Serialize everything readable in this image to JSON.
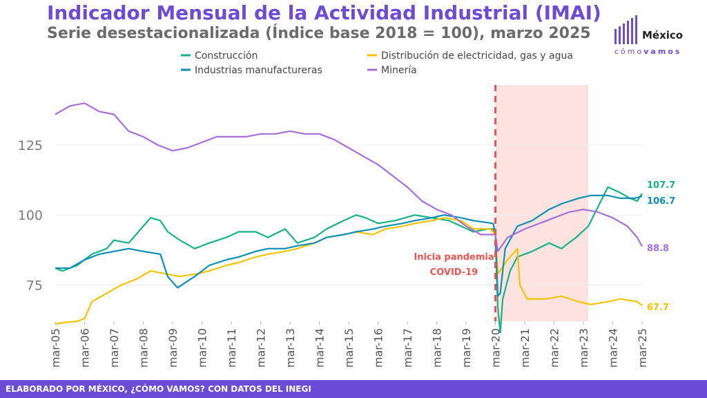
{
  "footer": "ELABORADO POR MÉXICO, ¿CÓMO VAMOS? CON DATOS DEL INEGI",
  "logo": {
    "brand": "México",
    "tagline_a": "cómo",
    "tagline_b": "vamos"
  },
  "chart_data": {
    "type": "line",
    "title": "Indicador Mensual de la Actividad Industrial (IMAI)",
    "subtitle": "Serie desestacionalizada (Índice base 2018 = 100), marzo 2025",
    "xlabel": "",
    "ylabel": "",
    "ylim": [
      62,
      146
    ],
    "yticks": [
      75,
      100,
      125
    ],
    "grid": true,
    "legend_position": "top",
    "x_start": "2005-03",
    "x_end": "2025-03",
    "x_ticks": [
      "mar-05",
      "mar-06",
      "mar-07",
      "mar-08",
      "mar-09",
      "mar-10",
      "mar-11",
      "mar-12",
      "mar-13",
      "mar-14",
      "mar-15",
      "mar-16",
      "mar-17",
      "mar-18",
      "mar-19",
      "mar-20",
      "mar-21",
      "mar-22",
      "mar-23",
      "mar-24",
      "mar-25"
    ],
    "pandemic_line": {
      "date": "2020-03",
      "label_1": "Inicia pandemia",
      "label_2": "COVID-19",
      "color": "#ef5350"
    },
    "shaded_range": {
      "start": "2020-03",
      "end": "2023-05",
      "color": "#fde3df"
    },
    "series": [
      {
        "name": "Construcción",
        "color": "#13b386",
        "end_label": "107.7",
        "points": [
          [
            "2005-03",
            81
          ],
          [
            "2005-06",
            80
          ],
          [
            "2005-12",
            82
          ],
          [
            "2006-06",
            86
          ],
          [
            "2006-12",
            88
          ],
          [
            "2007-03",
            91
          ],
          [
            "2007-09",
            90
          ],
          [
            "2008-03",
            96
          ],
          [
            "2008-06",
            99
          ],
          [
            "2008-10",
            98
          ],
          [
            "2009-01",
            94
          ],
          [
            "2009-06",
            91
          ],
          [
            "2009-12",
            88
          ],
          [
            "2010-06",
            90
          ],
          [
            "2011-01",
            92
          ],
          [
            "2011-06",
            94
          ],
          [
            "2012-01",
            94
          ],
          [
            "2012-06",
            92
          ],
          [
            "2013-01",
            95
          ],
          [
            "2013-06",
            90
          ],
          [
            "2014-01",
            92
          ],
          [
            "2014-06",
            95
          ],
          [
            "2015-01",
            98
          ],
          [
            "2015-06",
            100
          ],
          [
            "2015-10",
            99
          ],
          [
            "2016-03",
            97
          ],
          [
            "2016-10",
            98
          ],
          [
            "2017-06",
            100
          ],
          [
            "2018-01",
            99
          ],
          [
            "2018-08",
            98
          ],
          [
            "2019-01",
            96
          ],
          [
            "2019-06",
            94
          ],
          [
            "2019-12",
            95
          ],
          [
            "2020-02",
            95
          ],
          [
            "2020-03",
            93
          ],
          [
            "2020-04",
            67
          ],
          [
            "2020-05",
            58
          ],
          [
            "2020-06",
            70
          ],
          [
            "2020-09",
            80
          ],
          [
            "2020-12",
            85
          ],
          [
            "2021-06",
            87
          ],
          [
            "2022-01",
            90
          ],
          [
            "2022-06",
            88
          ],
          [
            "2022-12",
            92
          ],
          [
            "2023-05",
            96
          ],
          [
            "2023-09",
            103
          ],
          [
            "2024-01",
            110
          ],
          [
            "2024-06",
            108
          ],
          [
            "2024-10",
            106
          ],
          [
            "2025-01",
            105
          ],
          [
            "2025-03",
            107.7
          ]
        ]
      },
      {
        "name": "Distribución de electricidad, gas y agua",
        "color": "#f5c400",
        "end_label": "67.7",
        "points": [
          [
            "2005-03",
            61
          ],
          [
            "2005-06",
            61.5
          ],
          [
            "2005-12",
            62
          ],
          [
            "2006-03",
            63
          ],
          [
            "2006-06",
            69
          ],
          [
            "2006-12",
            72
          ],
          [
            "2007-06",
            75
          ],
          [
            "2007-12",
            77
          ],
          [
            "2008-06",
            80
          ],
          [
            "2008-12",
            79
          ],
          [
            "2009-06",
            78
          ],
          [
            "2010-01",
            79
          ],
          [
            "2010-06",
            80
          ],
          [
            "2011-01",
            82
          ],
          [
            "2011-06",
            83
          ],
          [
            "2012-01",
            85
          ],
          [
            "2012-06",
            86
          ],
          [
            "2013-01",
            87
          ],
          [
            "2013-06",
            88
          ],
          [
            "2014-01",
            90
          ],
          [
            "2014-06",
            92
          ],
          [
            "2015-01",
            93
          ],
          [
            "2015-06",
            94
          ],
          [
            "2016-01",
            93
          ],
          [
            "2016-06",
            95
          ],
          [
            "2017-01",
            96
          ],
          [
            "2017-06",
            97
          ],
          [
            "2018-01",
            98
          ],
          [
            "2018-06",
            99
          ],
          [
            "2019-01",
            98
          ],
          [
            "2019-06",
            95
          ],
          [
            "2020-01",
            95
          ],
          [
            "2020-03",
            93
          ],
          [
            "2020-04",
            79
          ],
          [
            "2020-08",
            84
          ],
          [
            "2020-12",
            88
          ],
          [
            "2021-01",
            75
          ],
          [
            "2021-04",
            70
          ],
          [
            "2021-12",
            70
          ],
          [
            "2022-06",
            71
          ],
          [
            "2023-01",
            69
          ],
          [
            "2023-06",
            68
          ],
          [
            "2024-01",
            69
          ],
          [
            "2024-06",
            70
          ],
          [
            "2025-01",
            69
          ],
          [
            "2025-03",
            67.7
          ]
        ]
      },
      {
        "name": "Industrias manufactureras",
        "color": "#0a8fb5",
        "end_label": "106.7",
        "points": [
          [
            "2005-03",
            81
          ],
          [
            "2005-09",
            81
          ],
          [
            "2006-03",
            84
          ],
          [
            "2006-09",
            86
          ],
          [
            "2007-03",
            87
          ],
          [
            "2007-09",
            88
          ],
          [
            "2008-03",
            87
          ],
          [
            "2008-10",
            86
          ],
          [
            "2009-01",
            78
          ],
          [
            "2009-05",
            74
          ],
          [
            "2009-12",
            78
          ],
          [
            "2010-06",
            82
          ],
          [
            "2011-01",
            84
          ],
          [
            "2011-06",
            85
          ],
          [
            "2012-01",
            87
          ],
          [
            "2012-06",
            88
          ],
          [
            "2013-01",
            88
          ],
          [
            "2013-06",
            89
          ],
          [
            "2014-01",
            90
          ],
          [
            "2014-06",
            92
          ],
          [
            "2015-01",
            93
          ],
          [
            "2015-06",
            94
          ],
          [
            "2016-01",
            95
          ],
          [
            "2016-06",
            96
          ],
          [
            "2017-01",
            97
          ],
          [
            "2017-06",
            98
          ],
          [
            "2018-01",
            99
          ],
          [
            "2018-06",
            100
          ],
          [
            "2019-01",
            99
          ],
          [
            "2019-06",
            98
          ],
          [
            "2020-02",
            97
          ],
          [
            "2020-03",
            94
          ],
          [
            "2020-04",
            71
          ],
          [
            "2020-05",
            72
          ],
          [
            "2020-07",
            88
          ],
          [
            "2020-12",
            96
          ],
          [
            "2021-06",
            98
          ],
          [
            "2022-01",
            102
          ],
          [
            "2022-06",
            104
          ],
          [
            "2023-01",
            106
          ],
          [
            "2023-06",
            107
          ],
          [
            "2024-01",
            107
          ],
          [
            "2024-06",
            106
          ],
          [
            "2024-12",
            106
          ],
          [
            "2025-03",
            106.7
          ]
        ]
      },
      {
        "name": "Minería",
        "color": "#a56fd9",
        "end_label": "88.8",
        "points": [
          [
            "2005-03",
            136
          ],
          [
            "2005-09",
            139
          ],
          [
            "2006-03",
            140
          ],
          [
            "2006-09",
            137
          ],
          [
            "2007-03",
            136
          ],
          [
            "2007-05",
            134
          ],
          [
            "2007-09",
            130
          ],
          [
            "2008-03",
            128
          ],
          [
            "2008-09",
            125
          ],
          [
            "2009-03",
            123
          ],
          [
            "2009-09",
            124
          ],
          [
            "2010-03",
            126
          ],
          [
            "2010-09",
            128
          ],
          [
            "2011-03",
            128
          ],
          [
            "2011-09",
            128
          ],
          [
            "2012-03",
            129
          ],
          [
            "2012-09",
            129
          ],
          [
            "2013-03",
            130
          ],
          [
            "2013-09",
            129
          ],
          [
            "2014-03",
            129
          ],
          [
            "2014-09",
            127
          ],
          [
            "2015-03",
            124
          ],
          [
            "2015-09",
            121
          ],
          [
            "2016-03",
            118
          ],
          [
            "2016-09",
            114
          ],
          [
            "2017-03",
            110
          ],
          [
            "2017-09",
            105
          ],
          [
            "2018-03",
            102
          ],
          [
            "2018-09",
            100
          ],
          [
            "2019-03",
            96
          ],
          [
            "2019-09",
            93
          ],
          [
            "2020-03",
            93
          ],
          [
            "2020-04",
            87
          ],
          [
            "2020-08",
            92
          ],
          [
            "2021-03",
            95
          ],
          [
            "2021-09",
            97
          ],
          [
            "2022-03",
            99
          ],
          [
            "2022-09",
            101
          ],
          [
            "2023-03",
            102
          ],
          [
            "2023-09",
            101
          ],
          [
            "2024-03",
            99
          ],
          [
            "2024-09",
            96
          ],
          [
            "2025-01",
            92
          ],
          [
            "2025-03",
            88.8
          ]
        ]
      }
    ]
  }
}
